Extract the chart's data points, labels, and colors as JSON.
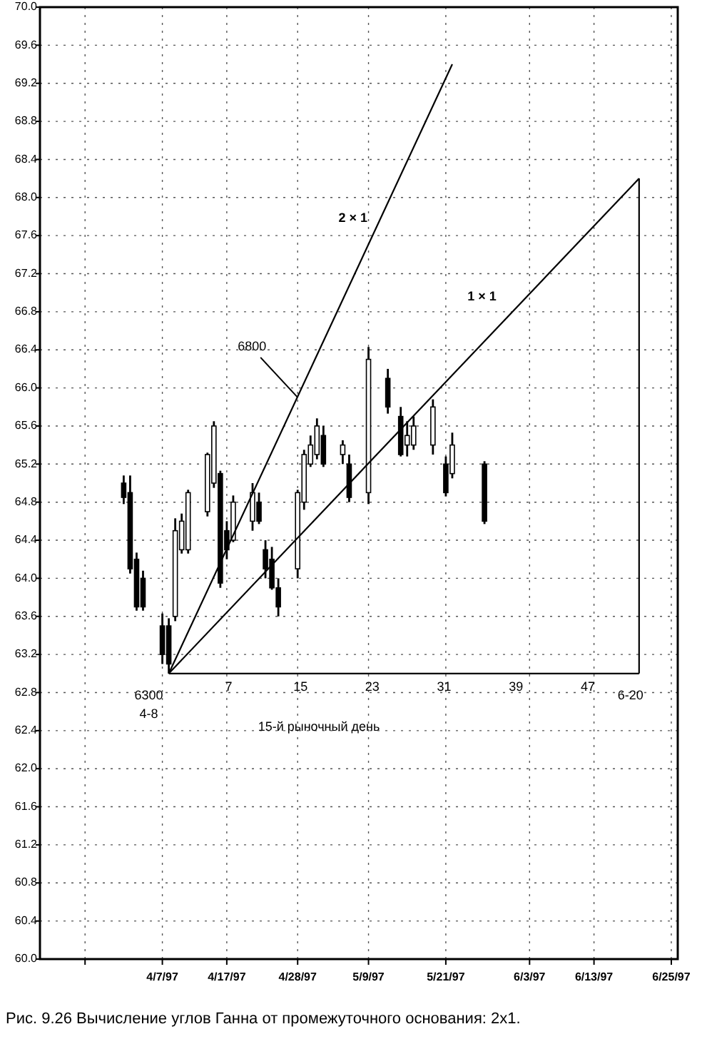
{
  "chart_data": {
    "type": "candlestick",
    "xlim": [
      "1997-03-19",
      "1997-06-26"
    ],
    "ylim": [
      60,
      70
    ],
    "xticks": [
      {
        "value": "1997-03-26",
        "label": null
      },
      {
        "value": "1997-04-07",
        "label": "4/7/97"
      },
      {
        "value": "1997-04-17",
        "label": "4/17/97"
      },
      {
        "value": "1997-04-28",
        "label": "4/28/97"
      },
      {
        "value": "1997-05-09",
        "label": "5/9/97"
      },
      {
        "value": "1997-05-21",
        "label": "5/21/97"
      },
      {
        "value": "1997-06-03",
        "label": "6/3/97"
      },
      {
        "value": "1997-06-13",
        "label": "6/13/97"
      },
      {
        "value": "1997-06-25",
        "label": "6/25/97"
      }
    ],
    "yticks": [
      {
        "value": 60,
        "label": "60.0"
      },
      60.4,
      60.8,
      61.2,
      61.6,
      {
        "value": 62,
        "label": "62.0"
      },
      62.4,
      62.8,
      63.2,
      63.6,
      {
        "value": 64,
        "label": "64.0"
      },
      64.4,
      64.8,
      65.2,
      65.6,
      {
        "value": 66,
        "label": "66.0"
      },
      66.4,
      66.8,
      67.2,
      67.6,
      {
        "value": 68,
        "label": "68.0"
      },
      68.4,
      68.8,
      69.2,
      69.6,
      {
        "value": 70,
        "label": "70.0"
      }
    ],
    "x2lim": [
      -14,
      57
    ],
    "x2ticks": [
      7,
      15,
      23,
      31,
      39,
      47
    ],
    "grid": true,
    "series": [
      {
        "color": "#000000",
        "x": [
          "1997-04-01",
          "1997-04-02",
          "1997-04-03",
          "1997-04-04",
          "1997-04-07",
          "1997-04-08",
          "1997-04-09",
          "1997-04-10",
          "1997-04-11",
          "1997-04-14",
          "1997-04-15",
          "1997-04-16",
          "1997-04-17",
          "1997-04-18",
          "1997-04-21",
          "1997-04-22",
          "1997-04-23",
          "1997-04-24",
          "1997-04-25",
          "1997-04-28",
          "1997-04-29",
          "1997-04-30",
          "1997-05-01",
          "1997-05-02",
          "1997-05-05",
          "1997-05-06",
          "1997-05-09",
          "1997-05-12",
          "1997-05-14",
          "1997-05-15",
          "1997-05-16",
          "1997-05-19",
          "1997-05-21",
          "1997-05-22",
          "1997-05-27"
        ],
        "ohlc": [
          [
            65.0,
            65.08,
            64.78,
            64.85
          ],
          [
            64.9,
            65.08,
            64.05,
            64.1
          ],
          [
            64.2,
            64.27,
            63.66,
            63.7
          ],
          [
            64.0,
            64.08,
            63.66,
            63.7
          ],
          [
            63.5,
            63.63,
            63.1,
            63.2
          ],
          [
            63.5,
            63.58,
            63.0,
            63.1
          ],
          [
            63.6,
            64.63,
            63.55,
            64.5
          ],
          [
            64.3,
            64.68,
            64.26,
            64.6
          ],
          [
            64.3,
            64.93,
            64.26,
            64.9
          ],
          [
            64.7,
            65.32,
            64.65,
            65.3
          ],
          [
            65.0,
            65.65,
            64.95,
            65.6
          ],
          [
            65.1,
            65.13,
            63.9,
            63.95
          ],
          [
            64.5,
            64.6,
            64.2,
            64.3
          ],
          [
            64.4,
            64.87,
            64.38,
            64.8
          ],
          [
            64.6,
            65.0,
            64.5,
            64.9
          ],
          [
            64.8,
            64.9,
            64.57,
            64.6
          ],
          [
            64.3,
            64.4,
            64.0,
            64.1
          ],
          [
            64.2,
            64.33,
            63.88,
            63.9
          ],
          [
            63.9,
            64.0,
            63.6,
            63.7
          ],
          [
            64.1,
            64.93,
            64.0,
            64.9
          ],
          [
            64.8,
            65.35,
            64.72,
            65.3
          ],
          [
            65.2,
            65.5,
            65.17,
            65.4
          ],
          [
            65.3,
            65.68,
            65.25,
            65.6
          ],
          [
            65.5,
            65.6,
            65.17,
            65.2
          ],
          [
            65.3,
            65.45,
            65.2,
            65.4
          ],
          [
            65.2,
            65.3,
            64.8,
            64.85
          ],
          [
            64.9,
            66.43,
            64.78,
            66.3
          ],
          [
            66.1,
            66.2,
            65.73,
            65.8
          ],
          [
            65.7,
            65.8,
            65.28,
            65.3
          ],
          [
            65.4,
            65.65,
            65.28,
            65.5
          ],
          [
            65.4,
            65.7,
            65.35,
            65.6
          ],
          [
            65.4,
            65.88,
            65.3,
            65.8
          ],
          [
            65.2,
            65.28,
            64.86,
            64.9
          ],
          [
            65.1,
            65.53,
            65.05,
            65.4
          ],
          [
            65.2,
            65.23,
            64.57,
            64.6
          ]
        ]
      },
      {
        "type": "line",
        "name": "2 × 1",
        "color": "#000000",
        "x": [
          "1997-04-08",
          "1997-05-22"
        ],
        "values": [
          63.0,
          69.4
        ]
      },
      {
        "type": "line",
        "name": "1 × 1",
        "color": "#000000",
        "x": [
          "1997-04-08",
          "1997-06-20"
        ],
        "values": [
          63.0,
          68.2
        ]
      },
      {
        "type": "line",
        "color": "#000000",
        "x": [
          "1997-04-08",
          "1997-06-20"
        ],
        "values": [
          63.0,
          63.0
        ]
      },
      {
        "type": "line",
        "color": "#000000",
        "x": [
          "1997-06-20",
          "1997-06-20"
        ],
        "values": [
          63.0,
          68.2
        ]
      }
    ],
    "annotations": [
      {
        "text": "6800",
        "x": "1997-04-28",
        "y": 65.9
      },
      {
        "text": "6300",
        "x": "1997-04-08",
        "y": 63.0
      },
      {
        "text": "4-8",
        "x": "1997-04-08",
        "y": 63.0
      },
      {
        "text": "6-20",
        "x": "1997-06-20",
        "y": 63.0
      },
      "15-й рыночный день",
      "Рис. 9.26   Вычисление углов Ганна от промежуточного основания: 2x1."
    ]
  }
}
